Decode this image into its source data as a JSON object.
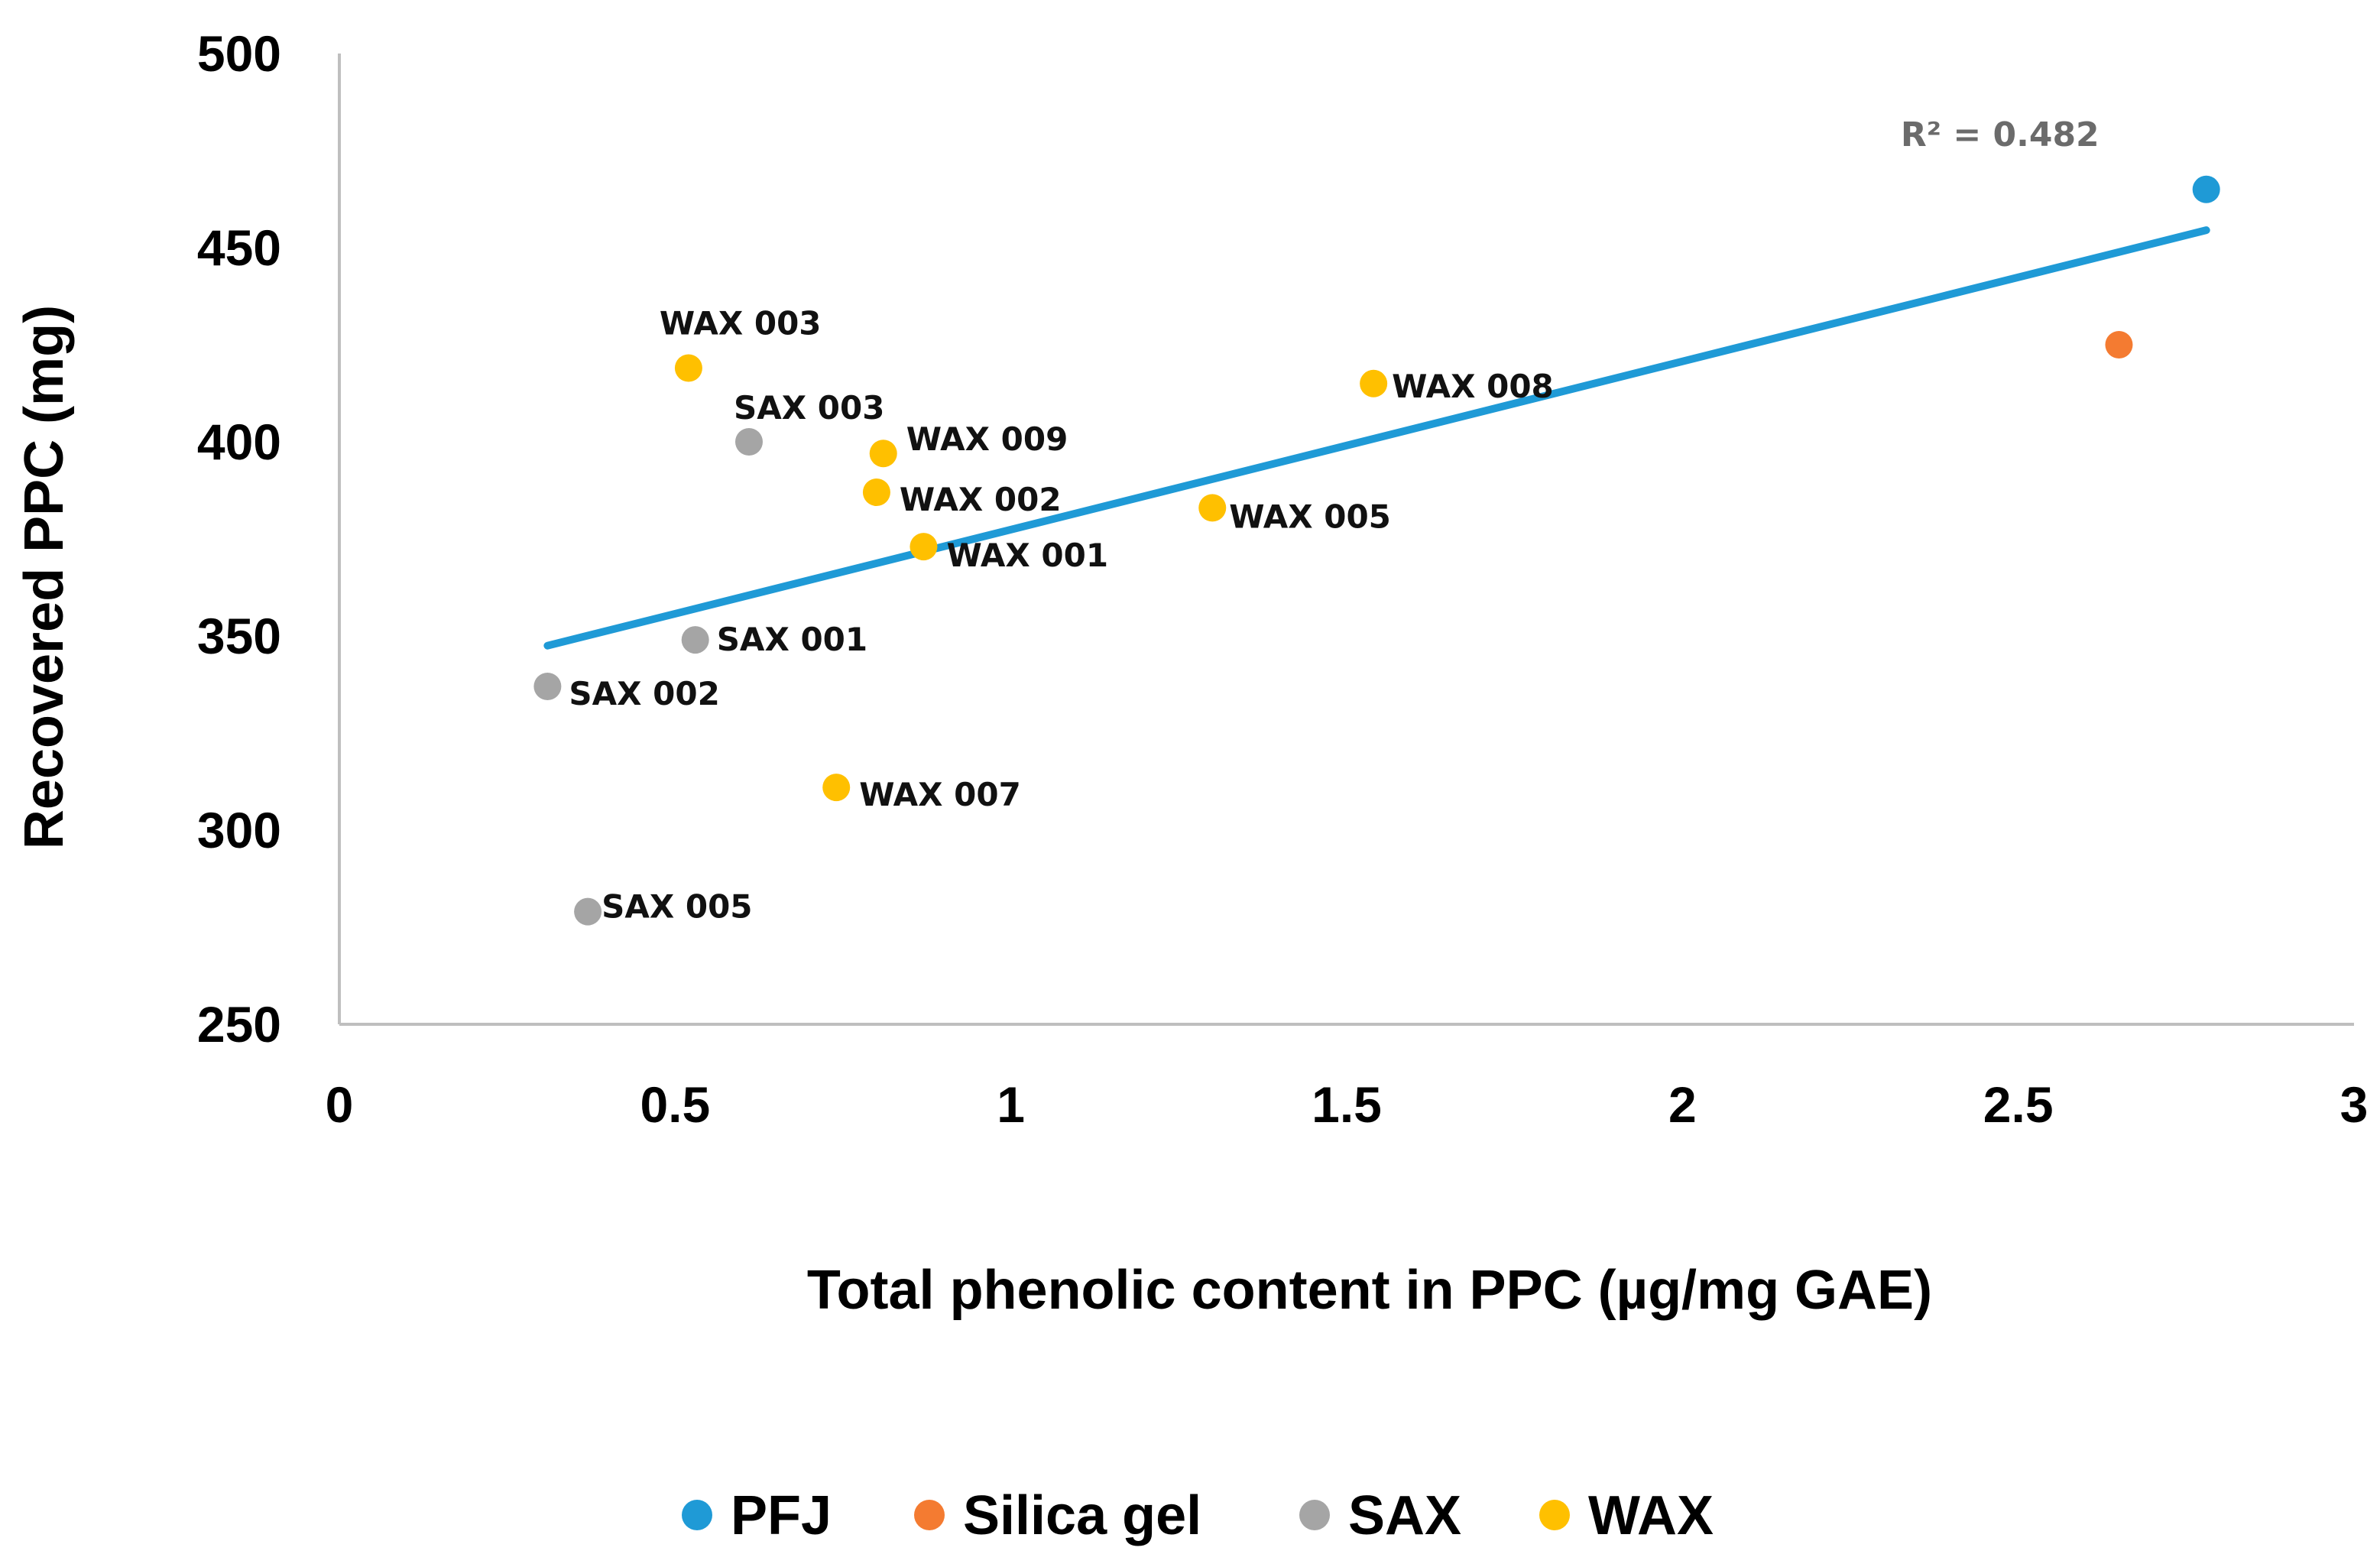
{
  "chart_data": {
    "type": "scatter",
    "title": "",
    "xlabel": "Total phenolic content in PPC (µg/mg GAE)",
    "ylabel": "Recovered PPC (mg)",
    "xlim": [
      0,
      3
    ],
    "ylim": [
      250,
      500
    ],
    "x_ticks": [
      0,
      0.5,
      1,
      1.5,
      2,
      2.5,
      3
    ],
    "x_tick_labels": [
      "0",
      "0.5",
      "1",
      "1.5",
      "2",
      "2.5",
      "3"
    ],
    "y_ticks": [
      250,
      300,
      350,
      400,
      450,
      500
    ],
    "y_tick_labels": [
      "250",
      "300",
      "350",
      "400",
      "450",
      "500"
    ],
    "grid": false,
    "legend_position": "bottom",
    "series": [
      {
        "name": "PFJ",
        "color": "#1F9AD6",
        "points": [
          {
            "x": 2.78,
            "y": 465,
            "label": ""
          }
        ]
      },
      {
        "name": "Silica gel",
        "color": "#F47B31",
        "points": [
          {
            "x": 2.65,
            "y": 425,
            "label": ""
          }
        ]
      },
      {
        "name": "SAX",
        "color": "#A5A5A5",
        "points": [
          {
            "x": 0.31,
            "y": 337,
            "label": "SAX 002"
          },
          {
            "x": 0.37,
            "y": 279,
            "label": "SAX 005"
          },
          {
            "x": 0.53,
            "y": 349,
            "label": "SAX 001"
          },
          {
            "x": 0.61,
            "y": 400,
            "label": "SAX 003"
          }
        ]
      },
      {
        "name": "WAX",
        "color": "#FFC000",
        "points": [
          {
            "x": 0.52,
            "y": 419,
            "label": "WAX 003"
          },
          {
            "x": 0.74,
            "y": 311,
            "label": "WAX 007"
          },
          {
            "x": 0.8,
            "y": 387,
            "label": "WAX 002"
          },
          {
            "x": 0.81,
            "y": 397,
            "label": "WAX 009"
          },
          {
            "x": 0.87,
            "y": 373,
            "label": "WAX 001"
          },
          {
            "x": 1.3,
            "y": 383,
            "label": "WAX 005"
          },
          {
            "x": 1.54,
            "y": 415,
            "label": "WAX 008"
          }
        ]
      }
    ],
    "trendline": {
      "type": "linear",
      "color": "#1F9AD6",
      "x_start": 0.31,
      "x_end": 2.78,
      "y_start": 347.5,
      "y_end": 454.5,
      "r2_label": "R² = 0.482"
    }
  }
}
